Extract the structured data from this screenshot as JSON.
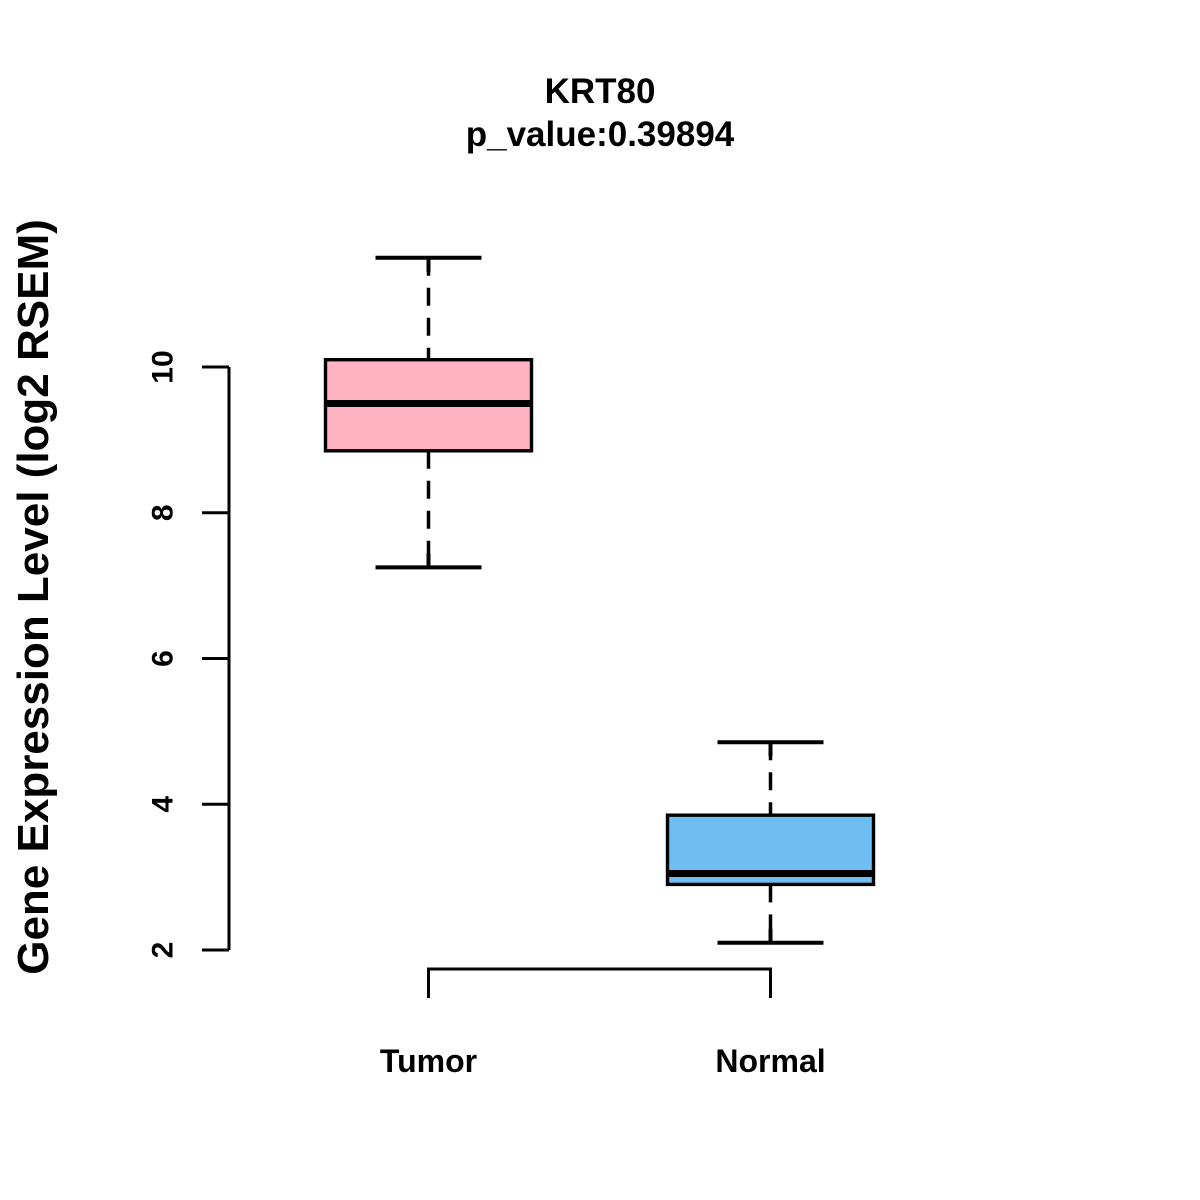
{
  "title": "KRT80",
  "subtitle": "p_value:0.39894",
  "y_axis": {
    "label": "Gene Expression Level (log2 RSEM)",
    "tick_labels": [
      "2",
      "4",
      "6",
      "8",
      "10"
    ]
  },
  "x_axis": {
    "categories": [
      "Tumor",
      "Normal"
    ]
  },
  "colors": {
    "tumor_fill": "#FFB3C3",
    "normal_fill": "#6EBEF2",
    "stroke": "#000000",
    "background": "#FFFFFF"
  },
  "chart_data": {
    "type": "boxplot",
    "title": "KRT80",
    "subtitle": "p_value:0.39894",
    "ylabel": "Gene Expression Level (log2 RSEM)",
    "xlabel": "",
    "categories": [
      "Tumor",
      "Normal"
    ],
    "yticks": [
      2,
      4,
      6,
      8,
      10
    ],
    "ylim": [
      1.3,
      12.0
    ],
    "grid": false,
    "legend_position": "none",
    "whisker_style": "dashed",
    "comparison_bracket": {
      "from": "Tumor",
      "to": "Normal",
      "position": "below-plot"
    },
    "series": [
      {
        "name": "Tumor",
        "fill": "#FFB3C3",
        "lower_whisker": 7.25,
        "q1": 8.85,
        "median": 9.5,
        "q3": 10.1,
        "upper_whisker": 11.5
      },
      {
        "name": "Normal",
        "fill": "#6EBEF2",
        "lower_whisker": 2.1,
        "q1": 2.9,
        "median": 3.05,
        "q3": 3.85,
        "upper_whisker": 4.85
      }
    ]
  }
}
